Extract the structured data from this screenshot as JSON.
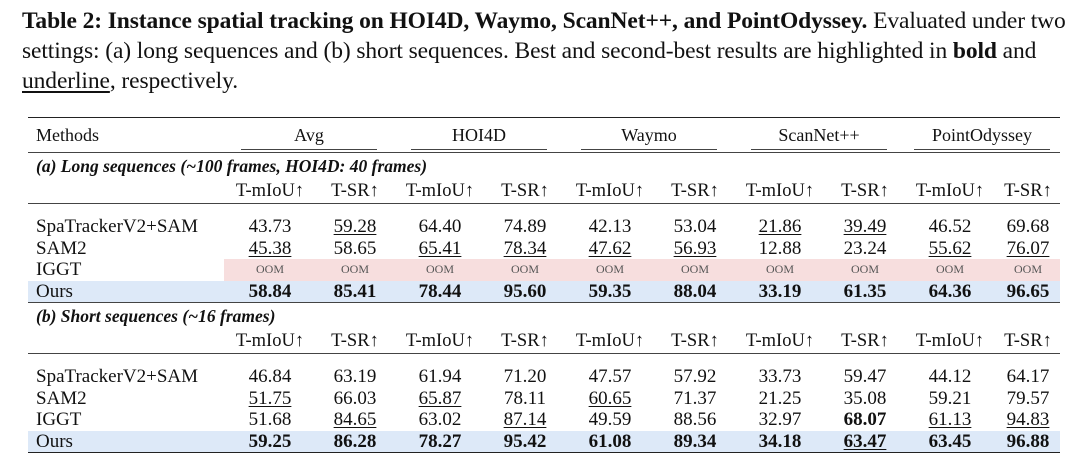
{
  "caption": {
    "label": "Table 2:",
    "title": "Instance spatial tracking on HOI4D, Waymo, ScanNet++, and PointOdyssey.",
    "text1": " Evaluated under two settings: (a) long sequences and (b) short sequences. Best and second-best results are highlighted in ",
    "bold_word": "bold",
    "and_word": " and ",
    "underline_word": "underline",
    "text2": ", respectively."
  },
  "table": {
    "method_header": "Methods",
    "groups": [
      "Avg",
      "HOI4D",
      "Waymo",
      "ScanNet++",
      "PointOdyssey"
    ],
    "metrics": [
      "T-mIoU↑",
      "T-SR↑"
    ],
    "sections": [
      {
        "title": "(a) Long sequences (~100 frames, HOI4D: 40 frames)",
        "rows": [
          {
            "method": "SpaTrackerV2+SAM",
            "type": "normal",
            "values": [
              "43.73",
              "59.28",
              "64.40",
              "74.89",
              "42.13",
              "53.04",
              "21.86",
              "39.49",
              "46.52",
              "69.68"
            ],
            "styles": [
              "",
              "u",
              "",
              "",
              "",
              "",
              "u",
              "u",
              "",
              ""
            ]
          },
          {
            "method": "SAM2",
            "type": "normal",
            "values": [
              "45.38",
              "58.65",
              "65.41",
              "78.34",
              "47.62",
              "56.93",
              "12.88",
              "23.24",
              "55.62",
              "76.07"
            ],
            "styles": [
              "u",
              "",
              "u",
              "u",
              "u",
              "u",
              "",
              "",
              "u",
              "u"
            ]
          },
          {
            "method": "IGGT",
            "type": "oom",
            "values": [
              "OOM",
              "OOM",
              "OOM",
              "OOM",
              "OOM",
              "OOM",
              "OOM",
              "OOM",
              "OOM",
              "OOM"
            ],
            "styles": [
              "",
              "",
              "",
              "",
              "",
              "",
              "",
              "",
              "",
              ""
            ]
          },
          {
            "method": "Ours",
            "type": "ours",
            "values": [
              "58.84",
              "85.41",
              "78.44",
              "95.60",
              "59.35",
              "88.04",
              "33.19",
              "61.35",
              "64.36",
              "96.65"
            ],
            "styles": [
              "",
              "",
              "",
              "",
              "",
              "",
              "",
              "",
              "",
              ""
            ]
          }
        ]
      },
      {
        "title": "(b) Short sequences (~16 frames)",
        "rows": [
          {
            "method": "SpaTrackerV2+SAM",
            "type": "normal",
            "values": [
              "46.84",
              "63.19",
              "61.94",
              "71.20",
              "47.57",
              "57.92",
              "33.73",
              "59.47",
              "44.12",
              "64.17"
            ],
            "styles": [
              "",
              "",
              "",
              "",
              "",
              "",
              "",
              "",
              "",
              ""
            ]
          },
          {
            "method": "SAM2",
            "type": "normal",
            "values": [
              "51.75",
              "66.03",
              "65.87",
              "78.11",
              "60.65",
              "71.37",
              "21.25",
              "35.08",
              "59.21",
              "79.57"
            ],
            "styles": [
              "u",
              "",
              "u",
              "",
              "u",
              "",
              "",
              "",
              "",
              ""
            ]
          },
          {
            "method": "IGGT",
            "type": "normal",
            "values": [
              "51.68",
              "84.65",
              "63.02",
              "87.14",
              "49.59",
              "88.56",
              "32.97",
              "68.07",
              "61.13",
              "94.83"
            ],
            "styles": [
              "",
              "u",
              "",
              "u",
              "",
              "",
              "",
              "b",
              "u",
              "u"
            ]
          },
          {
            "method": "Ours",
            "type": "ours",
            "values": [
              "59.25",
              "86.28",
              "78.27",
              "95.42",
              "61.08",
              "89.34",
              "34.18",
              "63.47",
              "63.45",
              "96.88"
            ],
            "styles": [
              "",
              "",
              "",
              "",
              "",
              "",
              "",
              "u",
              "",
              ""
            ]
          }
        ]
      }
    ]
  },
  "colors": {
    "oom_bg": "#f7dede",
    "ours_bg": "#dde9f8"
  }
}
